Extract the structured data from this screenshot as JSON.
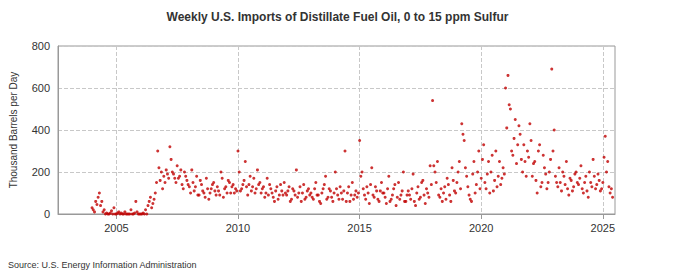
{
  "chart_data": {
    "type": "scatter",
    "title": "Weekly U.S. Imports of Distillate Fuel Oil, 0 to 15 ppm Sulfur",
    "y_label": "Thousand Barrels per Day",
    "annotations": [
      "Source: U.S. Energy Information Administration"
    ],
    "color": "#c00000",
    "marker": "circle",
    "grid": true,
    "xlim": [
      2002.6,
      2025.5
    ],
    "xticks": [
      2005,
      2010,
      2015,
      2020,
      2025
    ],
    "ylim": [
      0,
      800
    ],
    "yticks": [
      0,
      200,
      400,
      600,
      800
    ],
    "x": [
      2004,
      2004.05,
      2004.1,
      2004.15,
      2004.2,
      2004.25,
      2004.3,
      2004.35,
      2004.4,
      2004.45,
      2004.5,
      2004.55,
      2004.6,
      2004.65,
      2004.7,
      2004.75,
      2004.8,
      2004.85,
      2004.9,
      2004.95,
      2005,
      2005.05,
      2005.1,
      2005.15,
      2005.2,
      2005.25,
      2005.3,
      2005.35,
      2005.4,
      2005.45,
      2005.5,
      2005.55,
      2005.6,
      2005.65,
      2005.7,
      2005.75,
      2005.8,
      2005.85,
      2005.9,
      2005.95,
      2006,
      2006.05,
      2006.1,
      2006.15,
      2006.2,
      2006.25,
      2006.3,
      2006.35,
      2006.4,
      2006.45,
      2006.5,
      2006.55,
      2006.6,
      2006.65,
      2006.7,
      2006.75,
      2006.8,
      2006.85,
      2006.9,
      2006.95,
      2007,
      2007.05,
      2007.1,
      2007.15,
      2007.2,
      2007.25,
      2007.3,
      2007.35,
      2007.4,
      2007.45,
      2007.5,
      2007.55,
      2007.6,
      2007.65,
      2007.7,
      2007.75,
      2007.8,
      2007.85,
      2007.9,
      2007.95,
      2008,
      2008.05,
      2008.1,
      2008.15,
      2008.2,
      2008.25,
      2008.3,
      2008.35,
      2008.4,
      2008.45,
      2008.5,
      2008.55,
      2008.6,
      2008.65,
      2008.7,
      2008.75,
      2008.8,
      2008.85,
      2008.9,
      2008.95,
      2009,
      2009.05,
      2009.1,
      2009.15,
      2009.2,
      2009.25,
      2009.3,
      2009.35,
      2009.4,
      2009.45,
      2009.5,
      2009.55,
      2009.6,
      2009.65,
      2009.7,
      2009.75,
      2009.8,
      2009.85,
      2009.9,
      2009.95,
      2010,
      2010.05,
      2010.1,
      2010.15,
      2010.2,
      2010.25,
      2010.3,
      2010.35,
      2010.4,
      2010.45,
      2010.5,
      2010.55,
      2010.6,
      2010.65,
      2010.7,
      2010.75,
      2010.8,
      2010.85,
      2010.9,
      2010.95,
      2011,
      2011.05,
      2011.1,
      2011.15,
      2011.2,
      2011.25,
      2011.3,
      2011.35,
      2011.4,
      2011.45,
      2011.5,
      2011.55,
      2011.6,
      2011.65,
      2011.7,
      2011.75,
      2011.8,
      2011.85,
      2011.9,
      2011.95,
      2012,
      2012.05,
      2012.1,
      2012.15,
      2012.2,
      2012.25,
      2012.3,
      2012.35,
      2012.4,
      2012.45,
      2012.5,
      2012.55,
      2012.6,
      2012.65,
      2012.7,
      2012.75,
      2012.8,
      2012.85,
      2012.9,
      2012.95,
      2013,
      2013.05,
      2013.1,
      2013.15,
      2013.2,
      2013.25,
      2013.3,
      2013.35,
      2013.4,
      2013.45,
      2013.5,
      2013.55,
      2013.6,
      2013.65,
      2013.7,
      2013.75,
      2013.8,
      2013.85,
      2013.9,
      2013.95,
      2014,
      2014.05,
      2014.1,
      2014.15,
      2014.2,
      2014.25,
      2014.3,
      2014.35,
      2014.4,
      2014.45,
      2014.5,
      2014.55,
      2014.6,
      2014.65,
      2014.7,
      2014.75,
      2014.8,
      2014.85,
      2014.9,
      2014.95,
      2015,
      2015.05,
      2015.1,
      2015.15,
      2015.2,
      2015.25,
      2015.3,
      2015.35,
      2015.4,
      2015.45,
      2015.5,
      2015.55,
      2015.6,
      2015.65,
      2015.7,
      2015.75,
      2015.8,
      2015.85,
      2015.9,
      2015.95,
      2016,
      2016.05,
      2016.1,
      2016.15,
      2016.2,
      2016.25,
      2016.3,
      2016.35,
      2016.4,
      2016.45,
      2016.5,
      2016.55,
      2016.6,
      2016.65,
      2016.7,
      2016.75,
      2016.8,
      2016.85,
      2016.9,
      2016.95,
      2017,
      2017.05,
      2017.1,
      2017.15,
      2017.2,
      2017.25,
      2017.3,
      2017.35,
      2017.4,
      2017.45,
      2017.5,
      2017.55,
      2017.6,
      2017.65,
      2017.7,
      2017.75,
      2017.8,
      2017.85,
      2017.9,
      2017.95,
      2018,
      2018.05,
      2018.1,
      2018.15,
      2018.2,
      2018.25,
      2018.3,
      2018.35,
      2018.4,
      2018.45,
      2018.5,
      2018.55,
      2018.6,
      2018.65,
      2018.7,
      2018.75,
      2018.8,
      2018.85,
      2018.9,
      2018.95,
      2019,
      2019.05,
      2019.1,
      2019.15,
      2019.2,
      2019.25,
      2019.3,
      2019.35,
      2019.4,
      2019.45,
      2019.5,
      2019.55,
      2019.6,
      2019.65,
      2019.7,
      2019.75,
      2019.8,
      2019.85,
      2019.9,
      2019.95,
      2020,
      2020.05,
      2020.1,
      2020.15,
      2020.2,
      2020.25,
      2020.3,
      2020.35,
      2020.4,
      2020.45,
      2020.5,
      2020.55,
      2020.6,
      2020.65,
      2020.7,
      2020.75,
      2020.8,
      2020.85,
      2020.9,
      2020.95,
      2021,
      2021.05,
      2021.1,
      2021.15,
      2021.2,
      2021.25,
      2021.3,
      2021.35,
      2021.4,
      2021.45,
      2021.5,
      2021.55,
      2021.6,
      2021.65,
      2021.7,
      2021.75,
      2021.8,
      2021.85,
      2021.9,
      2021.95,
      2022,
      2022.05,
      2022.1,
      2022.15,
      2022.2,
      2022.25,
      2022.3,
      2022.35,
      2022.4,
      2022.45,
      2022.5,
      2022.55,
      2022.6,
      2022.65,
      2022.7,
      2022.75,
      2022.8,
      2022.85,
      2022.9,
      2022.95,
      2023,
      2023.05,
      2023.1,
      2023.15,
      2023.2,
      2023.25,
      2023.3,
      2023.35,
      2023.4,
      2023.45,
      2023.5,
      2023.55,
      2023.6,
      2023.65,
      2023.7,
      2023.75,
      2023.8,
      2023.85,
      2023.9,
      2023.95,
      2024,
      2024.05,
      2024.1,
      2024.15,
      2024.2,
      2024.25,
      2024.3,
      2024.35,
      2024.4,
      2024.45,
      2024.5,
      2024.55,
      2024.6,
      2024.65,
      2024.7,
      2024.75,
      2024.8,
      2024.85,
      2024.9,
      2024.95,
      2025,
      2025.05,
      2025.1,
      2025.15,
      2025.2,
      2025.25,
      2025.3,
      2025.35,
      2025.4
    ],
    "values": [
      30,
      20,
      10,
      60,
      45,
      80,
      100,
      40,
      60,
      10,
      20,
      0,
      5,
      0,
      0,
      5,
      15,
      0,
      30,
      0,
      0,
      5,
      10,
      0,
      5,
      0,
      0,
      10,
      0,
      0,
      0,
      0,
      20,
      0,
      0,
      5,
      60,
      10,
      0,
      0,
      0,
      0,
      5,
      0,
      20,
      0,
      40,
      60,
      80,
      30,
      50,
      70,
      100,
      150,
      300,
      220,
      160,
      200,
      120,
      180,
      150,
      210,
      190,
      170,
      320,
      260,
      200,
      190,
      170,
      150,
      230,
      170,
      180,
      210,
      140,
      120,
      200,
      180,
      160,
      140,
      130,
      100,
      210,
      150,
      110,
      130,
      180,
      90,
      90,
      160,
      140,
      110,
      100,
      80,
      170,
      120,
      70,
      100,
      120,
      140,
      150,
      110,
      90,
      130,
      110,
      90,
      200,
      170,
      80,
      120,
      130,
      100,
      160,
      150,
      100,
      130,
      140,
      100,
      120,
      110,
      300,
      200,
      110,
      120,
      140,
      160,
      250,
      130,
      90,
      140,
      180,
      110,
      130,
      170,
      100,
      120,
      210,
      140,
      150,
      100,
      120,
      130,
      80,
      100,
      170,
      90,
      140,
      120,
      100,
      80,
      60,
      110,
      130,
      70,
      90,
      140,
      110,
      90,
      150,
      100,
      90,
      110,
      130,
      60,
      70,
      120,
      110,
      90,
      210,
      80,
      100,
      130,
      60,
      100,
      140,
      70,
      80,
      110,
      120,
      90,
      100,
      80,
      70,
      120,
      150,
      90,
      90,
      60,
      50,
      100,
      120,
      140,
      180,
      70,
      80,
      120,
      110,
      80,
      60,
      100,
      200,
      120,
      90,
      70,
      130,
      100,
      70,
      110,
      300,
      60,
      100,
      130,
      60,
      90,
      150,
      70,
      90,
      110,
      80,
      100,
      350,
      180,
      200,
      120,
      90,
      70,
      130,
      100,
      50,
      140,
      220,
      90,
      80,
      130,
      110,
      70,
      60,
      110,
      150,
      100,
      100,
      80,
      50,
      120,
      180,
      60,
      70,
      90,
      120,
      140,
      40,
      80,
      150,
      70,
      90,
      110,
      200,
      60,
      60,
      90,
      110,
      90,
      70,
      120,
      190,
      60,
      40,
      100,
      130,
      70,
      80,
      150,
      160,
      90,
      50,
      120,
      100,
      80,
      230,
      140,
      540,
      230,
      200,
      150,
      250,
      90,
      80,
      120,
      60,
      100,
      130,
      70,
      170,
      140,
      90,
      60,
      220,
      160,
      110,
      100,
      150,
      200,
      250,
      120,
      430,
      380,
      350,
      220,
      180,
      130,
      90,
      70,
      60,
      190,
      250,
      100,
      140,
      200,
      300,
      120,
      170,
      260,
      330,
      150,
      120,
      190,
      250,
      100,
      200,
      280,
      110,
      160,
      300,
      130,
      180,
      250,
      140,
      170,
      220,
      190,
      600,
      410,
      660,
      520,
      500,
      300,
      280,
      360,
      450,
      240,
      330,
      420,
      380,
      260,
      200,
      330,
      250,
      180,
      300,
      270,
      430,
      350,
      180,
      240,
      250,
      160,
      100,
      300,
      330,
      130,
      150,
      280,
      220,
      190,
      120,
      150,
      200,
      260,
      690,
      300,
      400,
      180,
      150,
      130,
      220,
      150,
      110,
      200,
      180,
      140,
      250,
      120,
      90,
      170,
      160,
      110,
      130,
      190,
      200,
      150,
      140,
      170,
      230,
      120,
      100,
      150,
      180,
      110,
      80,
      200,
      150,
      130,
      260,
      180,
      120,
      140,
      190,
      160,
      110,
      120,
      150,
      270,
      370,
      200,
      250,
      130,
      100,
      120,
      80
    ]
  }
}
